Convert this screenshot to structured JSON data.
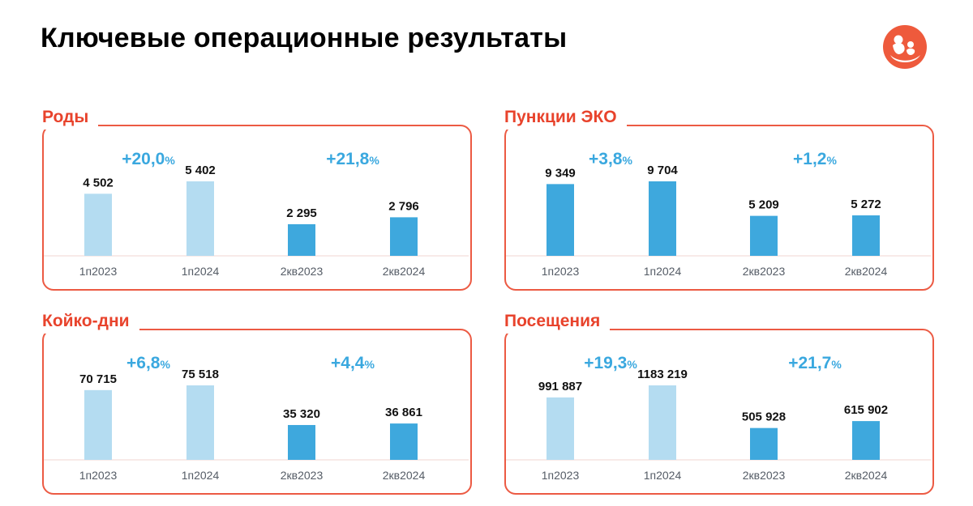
{
  "header": {
    "title": "Ключевые операционные результаты"
  },
  "colors": {
    "accent": "#e8432c",
    "bar_light": "#b4dcf1",
    "bar_dark": "#3ea8dd",
    "growth": "#3aa8df"
  },
  "logo": {
    "icon": "mother-and-child-logo-icon"
  },
  "chart_data": [
    {
      "type": "bar",
      "title": "Роды",
      "categories": [
        "1п2023",
        "1п2024",
        "2кв2023",
        "2кв2024"
      ],
      "values": [
        4502,
        5402,
        2295,
        2796
      ],
      "value_labels": [
        "4 502",
        "5 402",
        "2 295",
        "2 796"
      ],
      "growth": [
        {
          "number": "+20,0",
          "unit": "%"
        },
        {
          "number": "+21,8",
          "unit": "%"
        }
      ],
      "bar_colors": [
        "#b4dcf1",
        "#b4dcf1",
        "#3ea8dd",
        "#3ea8dd"
      ]
    },
    {
      "type": "bar",
      "title": "Пункции ЭКО",
      "categories": [
        "1п2023",
        "1п2024",
        "2кв2023",
        "2кв2024"
      ],
      "values": [
        9349,
        9704,
        5209,
        5272
      ],
      "value_labels": [
        "9 349",
        "9 704",
        "5 209",
        "5 272"
      ],
      "growth": [
        {
          "number": "+3,8",
          "unit": "%"
        },
        {
          "number": "+1,2",
          "unit": "%"
        }
      ],
      "bar_colors": [
        "#3ea8dd",
        "#3ea8dd",
        "#3ea8dd",
        "#3ea8dd"
      ]
    },
    {
      "type": "bar",
      "title": "Койко-дни",
      "categories": [
        "1п2023",
        "1п2024",
        "2кв2023",
        "2кв2024"
      ],
      "values": [
        70715,
        75518,
        35320,
        36861
      ],
      "value_labels": [
        "70 715",
        "75 518",
        "35 320",
        "36 861"
      ],
      "growth": [
        {
          "number": "+6,8",
          "unit": "%"
        },
        {
          "number": "+4,4",
          "unit": "%"
        }
      ],
      "bar_colors": [
        "#b4dcf1",
        "#b4dcf1",
        "#3ea8dd",
        "#3ea8dd"
      ]
    },
    {
      "type": "bar",
      "title": "Посещения",
      "categories": [
        "1п2023",
        "1п2024",
        "2кв2023",
        "2кв2024"
      ],
      "values": [
        991887,
        1183219,
        505928,
        615902
      ],
      "value_labels": [
        "991 887",
        "1183 219",
        "505 928",
        "615 902"
      ],
      "growth": [
        {
          "number": "+19,3",
          "unit": "%"
        },
        {
          "number": "+21,7",
          "unit": "%"
        }
      ],
      "bar_colors": [
        "#b4dcf1",
        "#b4dcf1",
        "#3ea8dd",
        "#3ea8dd"
      ]
    }
  ]
}
